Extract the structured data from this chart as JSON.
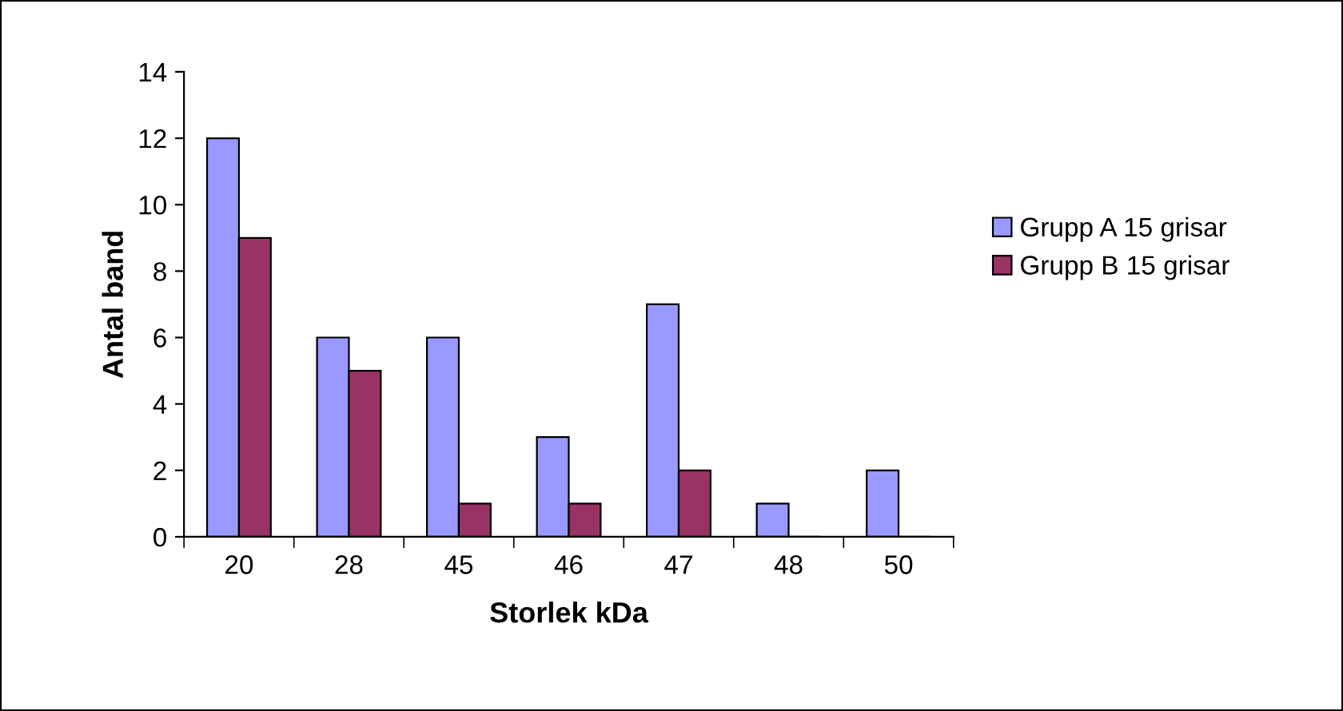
{
  "chart_data": {
    "type": "bar",
    "xlabel": "Storlek kDa",
    "ylabel": "Antal band",
    "categories": [
      "20",
      "28",
      "45",
      "46",
      "47",
      "48",
      "50"
    ],
    "series": [
      {
        "name": "Grupp A 15 grisar",
        "color": "#9999ff",
        "values": [
          12,
          6,
          6,
          3,
          7,
          1,
          2
        ]
      },
      {
        "name": "Grupp B 15 grisar",
        "color": "#993366",
        "values": [
          9,
          5,
          1,
          1,
          2,
          0,
          0
        ]
      }
    ],
    "ylim": [
      0,
      14
    ],
    "yticks": [
      0,
      2,
      4,
      6,
      8,
      10,
      12,
      14
    ],
    "grid": false,
    "legend": "right"
  }
}
